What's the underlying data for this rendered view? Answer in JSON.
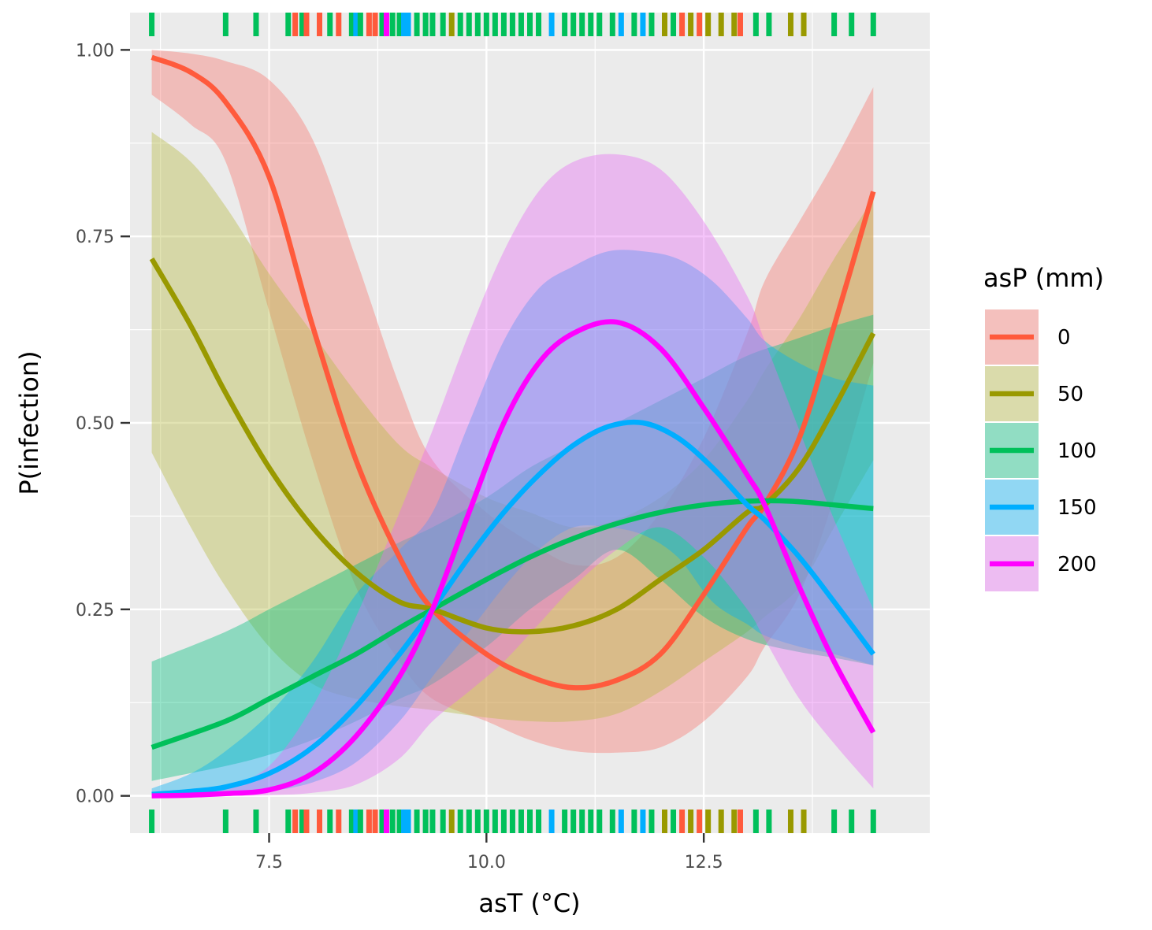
{
  "chart_data": {
    "type": "line",
    "title": "",
    "xlabel": "asT (°C)",
    "ylabel": "P(infection)",
    "xlim": [
      5.9,
      15.1
    ],
    "ylim": [
      -0.05,
      1.05
    ],
    "x_ticks": [
      7.5,
      10.0,
      12.5
    ],
    "x_tick_labels": [
      "7.5",
      "10.0",
      "12.5"
    ],
    "y_ticks": [
      0.0,
      0.25,
      0.5,
      0.75,
      1.0
    ],
    "y_tick_labels": [
      "0.00",
      "0.25",
      "0.50",
      "0.75",
      "1.00"
    ],
    "grid": true,
    "legend": {
      "title": "asP (mm)",
      "position": "right"
    },
    "series": [
      {
        "name": "0",
        "color": "#F8766D",
        "line_color": "#FF5A3C",
        "x": [
          6.15,
          6.6,
          7.0,
          7.5,
          8.0,
          8.5,
          9.0,
          9.38,
          10.0,
          10.5,
          11.0,
          11.5,
          12.0,
          12.5,
          13.0,
          13.2,
          13.6,
          14.0,
          14.45
        ],
        "y": [
          0.99,
          0.97,
          0.93,
          0.83,
          0.63,
          0.45,
          0.32,
          0.25,
          0.19,
          0.16,
          0.145,
          0.155,
          0.19,
          0.27,
          0.36,
          0.39,
          0.48,
          0.63,
          0.81
        ],
        "lower": [
          0.94,
          0.9,
          0.85,
          0.65,
          0.45,
          0.28,
          0.18,
          0.13,
          0.1,
          0.075,
          0.06,
          0.058,
          0.065,
          0.1,
          0.16,
          0.2,
          0.27,
          0.4,
          0.58
        ],
        "upper": [
          1.0,
          0.995,
          0.985,
          0.96,
          0.88,
          0.72,
          0.55,
          0.45,
          0.38,
          0.34,
          0.31,
          0.32,
          0.38,
          0.48,
          0.62,
          0.69,
          0.77,
          0.85,
          0.95
        ]
      },
      {
        "name": "50",
        "color": "#B7B840",
        "line_color": "#999900",
        "x": [
          6.15,
          6.6,
          7.0,
          7.5,
          8.0,
          8.5,
          9.0,
          9.38,
          10.0,
          10.5,
          11.0,
          11.5,
          12.0,
          12.5,
          13.0,
          13.2,
          13.6,
          14.0,
          14.45
        ],
        "y": [
          0.72,
          0.63,
          0.54,
          0.44,
          0.36,
          0.3,
          0.26,
          0.25,
          0.225,
          0.22,
          0.228,
          0.25,
          0.29,
          0.33,
          0.38,
          0.39,
          0.44,
          0.52,
          0.62
        ],
        "lower": [
          0.46,
          0.36,
          0.28,
          0.2,
          0.15,
          0.13,
          0.12,
          0.115,
          0.105,
          0.1,
          0.1,
          0.11,
          0.14,
          0.18,
          0.22,
          0.24,
          0.28,
          0.36,
          0.45
        ],
        "upper": [
          0.89,
          0.85,
          0.79,
          0.7,
          0.62,
          0.54,
          0.47,
          0.44,
          0.4,
          0.38,
          0.36,
          0.37,
          0.4,
          0.45,
          0.53,
          0.57,
          0.64,
          0.72,
          0.8
        ]
      },
      {
        "name": "100",
        "color": "#00BF7D",
        "line_color": "#00C05A",
        "x": [
          6.15,
          7.0,
          7.5,
          8.0,
          8.5,
          9.0,
          9.38,
          10.0,
          10.5,
          11.0,
          11.5,
          12.0,
          12.5,
          13.0,
          13.5,
          14.0,
          14.45
        ],
        "y": [
          0.065,
          0.1,
          0.13,
          0.16,
          0.19,
          0.225,
          0.25,
          0.29,
          0.32,
          0.345,
          0.365,
          0.38,
          0.39,
          0.395,
          0.395,
          0.39,
          0.385
        ],
        "lower": [
          0.02,
          0.04,
          0.055,
          0.075,
          0.1,
          0.13,
          0.15,
          0.2,
          0.25,
          0.29,
          0.33,
          0.29,
          0.24,
          0.21,
          0.195,
          0.185,
          0.175
        ],
        "upper": [
          0.18,
          0.22,
          0.25,
          0.28,
          0.31,
          0.34,
          0.36,
          0.4,
          0.44,
          0.47,
          0.5,
          0.53,
          0.56,
          0.59,
          0.61,
          0.63,
          0.645
        ]
      },
      {
        "name": "150",
        "color": "#00B0F6",
        "line_color": "#00AEFF",
        "x": [
          6.15,
          6.6,
          7.0,
          7.5,
          8.0,
          8.5,
          9.0,
          9.38,
          9.8,
          10.2,
          10.6,
          11.0,
          11.4,
          11.8,
          12.2,
          12.6,
          13.0,
          13.2,
          13.6,
          14.0,
          14.45
        ],
        "y": [
          0.002,
          0.006,
          0.012,
          0.03,
          0.065,
          0.12,
          0.19,
          0.25,
          0.32,
          0.38,
          0.43,
          0.47,
          0.495,
          0.5,
          0.48,
          0.44,
          0.39,
          0.37,
          0.32,
          0.26,
          0.19
        ],
        "lower": [
          0.0,
          0.0,
          0.002,
          0.006,
          0.018,
          0.045,
          0.1,
          0.16,
          0.22,
          0.28,
          0.33,
          0.36,
          0.36,
          0.35,
          0.32,
          0.26,
          0.23,
          0.215,
          0.2,
          0.19,
          0.175
        ],
        "upper": [
          0.01,
          0.03,
          0.06,
          0.11,
          0.18,
          0.27,
          0.33,
          0.38,
          0.5,
          0.61,
          0.68,
          0.71,
          0.73,
          0.73,
          0.72,
          0.69,
          0.64,
          0.61,
          0.58,
          0.56,
          0.55
        ]
      },
      {
        "name": "200",
        "color": "#E76BF3",
        "line_color": "#FF00FF",
        "x": [
          6.15,
          6.6,
          7.0,
          7.5,
          8.0,
          8.5,
          9.0,
          9.38,
          9.8,
          10.2,
          10.6,
          11.0,
          11.5,
          12.0,
          12.5,
          13.0,
          13.2,
          13.6,
          14.0,
          14.45
        ],
        "y": [
          0.0,
          0.001,
          0.003,
          0.008,
          0.03,
          0.08,
          0.16,
          0.25,
          0.38,
          0.5,
          0.58,
          0.62,
          0.635,
          0.6,
          0.52,
          0.43,
          0.39,
          0.28,
          0.18,
          0.085
        ],
        "lower": [
          0.0,
          0.0,
          0.0,
          0.001,
          0.004,
          0.015,
          0.05,
          0.1,
          0.14,
          0.18,
          0.23,
          0.28,
          0.33,
          0.36,
          0.32,
          0.25,
          0.21,
          0.13,
          0.07,
          0.01
        ],
        "upper": [
          0.0,
          0.003,
          0.012,
          0.04,
          0.12,
          0.24,
          0.38,
          0.49,
          0.62,
          0.73,
          0.81,
          0.85,
          0.86,
          0.84,
          0.77,
          0.67,
          0.61,
          0.49,
          0.37,
          0.25
        ]
      }
    ],
    "rug": [
      {
        "x": 6.15,
        "series": "100"
      },
      {
        "x": 7.0,
        "series": "100"
      },
      {
        "x": 7.35,
        "series": "100"
      },
      {
        "x": 7.72,
        "series": "100"
      },
      {
        "x": 7.8,
        "series": "0"
      },
      {
        "x": 7.88,
        "series": "100"
      },
      {
        "x": 7.93,
        "series": "0"
      },
      {
        "x": 8.08,
        "series": "0"
      },
      {
        "x": 8.2,
        "series": "100"
      },
      {
        "x": 8.3,
        "series": "0"
      },
      {
        "x": 8.45,
        "series": "100"
      },
      {
        "x": 8.5,
        "series": "150"
      },
      {
        "x": 8.55,
        "series": "100"
      },
      {
        "x": 8.65,
        "series": "0"
      },
      {
        "x": 8.72,
        "series": "0"
      },
      {
        "x": 8.8,
        "series": "100"
      },
      {
        "x": 8.85,
        "series": "200"
      },
      {
        "x": 8.92,
        "series": "100"
      },
      {
        "x": 9.0,
        "series": "100"
      },
      {
        "x": 9.05,
        "series": "150"
      },
      {
        "x": 9.1,
        "series": "150"
      },
      {
        "x": 9.2,
        "series": "100"
      },
      {
        "x": 9.3,
        "series": "100"
      },
      {
        "x": 9.38,
        "series": "100"
      },
      {
        "x": 9.5,
        "series": "100"
      },
      {
        "x": 9.6,
        "series": "50"
      },
      {
        "x": 9.7,
        "series": "100"
      },
      {
        "x": 9.8,
        "series": "100"
      },
      {
        "x": 9.9,
        "series": "100"
      },
      {
        "x": 10.0,
        "series": "100"
      },
      {
        "x": 10.1,
        "series": "100"
      },
      {
        "x": 10.2,
        "series": "100"
      },
      {
        "x": 10.3,
        "series": "100"
      },
      {
        "x": 10.4,
        "series": "100"
      },
      {
        "x": 10.5,
        "series": "100"
      },
      {
        "x": 10.6,
        "series": "100"
      },
      {
        "x": 10.75,
        "series": "150"
      },
      {
        "x": 10.9,
        "series": "100"
      },
      {
        "x": 11.0,
        "series": "100"
      },
      {
        "x": 11.1,
        "series": "100"
      },
      {
        "x": 11.2,
        "series": "100"
      },
      {
        "x": 11.3,
        "series": "100"
      },
      {
        "x": 11.45,
        "series": "100"
      },
      {
        "x": 11.55,
        "series": "150"
      },
      {
        "x": 11.7,
        "series": "100"
      },
      {
        "x": 11.8,
        "series": "150"
      },
      {
        "x": 11.9,
        "series": "100"
      },
      {
        "x": 12.05,
        "series": "50"
      },
      {
        "x": 12.15,
        "series": "100"
      },
      {
        "x": 12.25,
        "series": "0"
      },
      {
        "x": 12.35,
        "series": "50"
      },
      {
        "x": 12.45,
        "series": "0"
      },
      {
        "x": 12.55,
        "series": "50"
      },
      {
        "x": 12.7,
        "series": "50"
      },
      {
        "x": 12.85,
        "series": "50"
      },
      {
        "x": 12.92,
        "series": "0"
      },
      {
        "x": 13.1,
        "series": "100"
      },
      {
        "x": 13.25,
        "series": "100"
      },
      {
        "x": 13.5,
        "series": "50"
      },
      {
        "x": 13.65,
        "series": "50"
      },
      {
        "x": 14.0,
        "series": "100"
      },
      {
        "x": 14.2,
        "series": "100"
      },
      {
        "x": 14.45,
        "series": "100"
      }
    ]
  }
}
